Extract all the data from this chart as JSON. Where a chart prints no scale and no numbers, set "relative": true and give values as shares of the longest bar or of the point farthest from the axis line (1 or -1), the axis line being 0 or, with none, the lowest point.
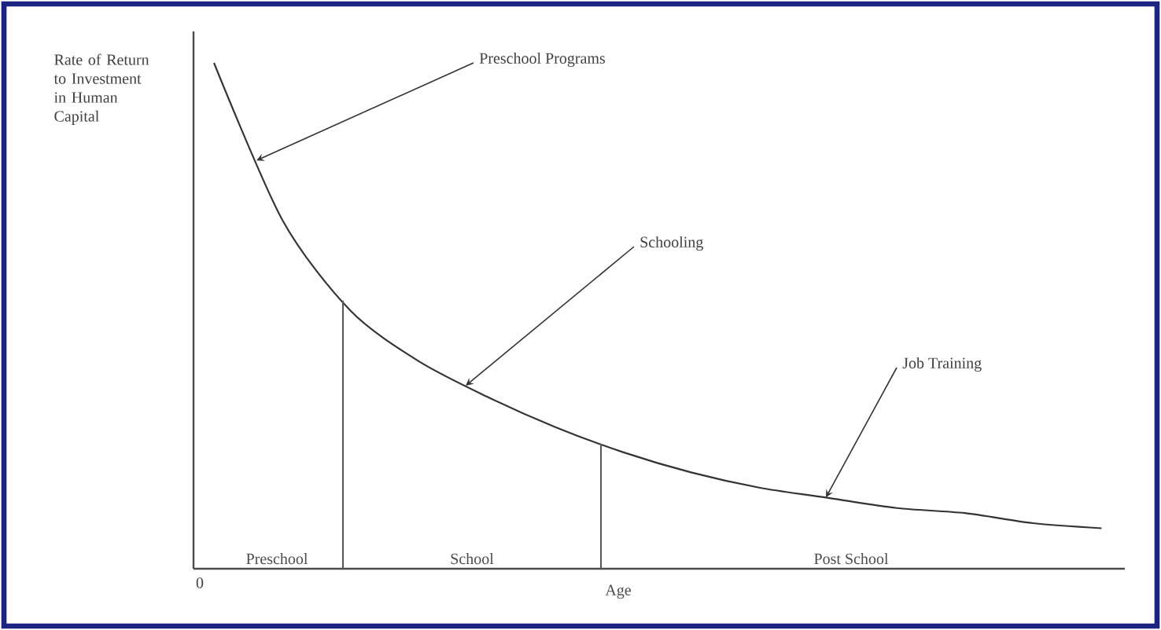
{
  "chart_data": {
    "type": "line",
    "relative": true,
    "xlabel": "Age",
    "ylabel": "Rate of Return to Investment in Human Capital",
    "categories": [
      null,
      null,
      null,
      null,
      null,
      null,
      null,
      null,
      null,
      null,
      null,
      null,
      null,
      null
    ],
    "series": [
      {
        "color": "#333333",
        "values": [
          1.0,
          0.69,
          0.51,
          0.41,
          0.34,
          0.28,
          0.23,
          0.19,
          0.16,
          0.14,
          0.12,
          0.11,
          0.09,
          0.08
        ]
      }
    ],
    "annotations": [
      "Preschool Programs",
      "Schooling",
      "Job Training",
      "0",
      "Preschool",
      "School",
      "Post School"
    ],
    "marker": "none",
    "line_style": "solid"
  }
}
